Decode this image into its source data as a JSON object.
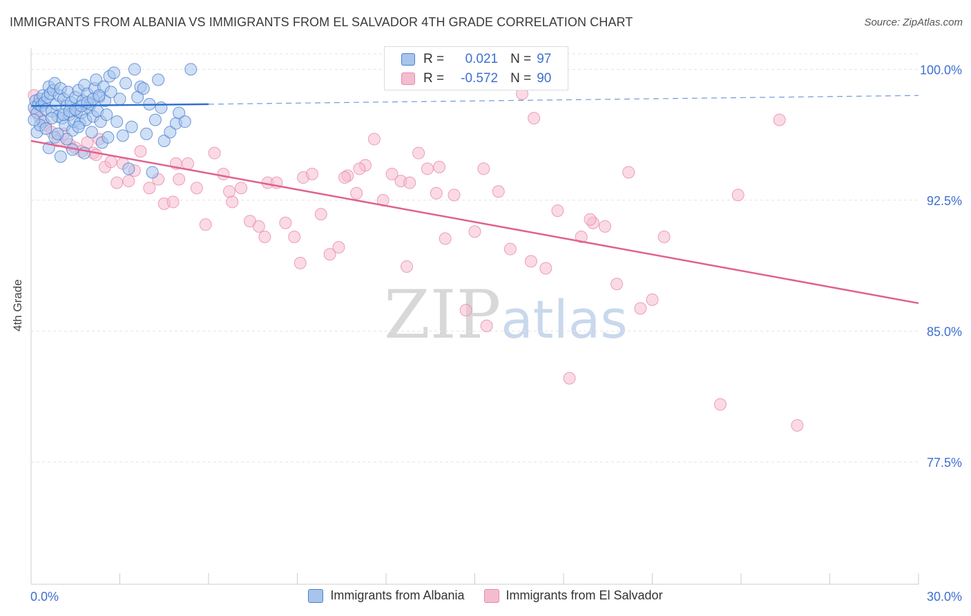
{
  "title": "IMMIGRANTS FROM ALBANIA VS IMMIGRANTS FROM EL SALVADOR 4TH GRADE CORRELATION CHART",
  "source": "Source: ZipAtlas.com",
  "watermark": {
    "zip": "ZIP",
    "atlas": "atlas"
  },
  "legend": {
    "albania": {
      "r_label": "R =",
      "r_value": "0.021",
      "n_label": "N =",
      "n_value": "97"
    },
    "elsalvador": {
      "r_label": "R =",
      "r_value": "-0.572",
      "n_label": "N =",
      "n_value": "90"
    }
  },
  "bottom_legend": {
    "albania": "Immigrants from Albania",
    "elsalvador": "Immigrants from El Salvador"
  },
  "colors": {
    "albania_fill": "#a8c4ec",
    "albania_stroke": "#4a7fd0",
    "albania_line": "#2f6fcf",
    "elsalvador_fill": "#f5bcd0",
    "elsalvador_stroke": "#e88aa8",
    "elsalvador_line": "#e0618f",
    "tick_label": "#3d6fd0",
    "grid": "#e3e3e3"
  },
  "chart_data": {
    "type": "scatter",
    "title": "IMMIGRANTS FROM ALBANIA VS IMMIGRANTS FROM EL SALVADOR 4TH GRADE CORRELATION CHART",
    "xlabel": "",
    "ylabel": "4th Grade",
    "xlim": [
      0,
      30
    ],
    "ylim": [
      70.5,
      101.2
    ],
    "x_tick_labels": [
      "0.0%",
      "30.0%"
    ],
    "y_ticks": [
      100.0,
      92.5,
      85.0,
      77.5
    ],
    "y_tick_labels": [
      "100.0%",
      "92.5%",
      "85.0%",
      "77.5%"
    ],
    "grid": true,
    "series": [
      {
        "name": "Immigrants from Albania",
        "R": 0.021,
        "N": 97,
        "trend": {
          "x": [
            0,
            6.0
          ],
          "y": [
            97.9,
            98.0
          ],
          "dash_x": [
            6.0,
            30
          ],
          "dash_y": [
            98.0,
            98.5
          ]
        },
        "points": [
          [
            0.1,
            97.8
          ],
          [
            0.15,
            98.2
          ],
          [
            0.2,
            97.5
          ],
          [
            0.25,
            98.0
          ],
          [
            0.3,
            98.3
          ],
          [
            0.35,
            97.9
          ],
          [
            0.4,
            98.5
          ],
          [
            0.45,
            98.1
          ],
          [
            0.5,
            97.7
          ],
          [
            0.55,
            98.4
          ],
          [
            0.6,
            99.0
          ],
          [
            0.65,
            98.6
          ],
          [
            0.7,
            97.6
          ],
          [
            0.75,
            98.8
          ],
          [
            0.8,
            99.2
          ],
          [
            0.85,
            98.0
          ],
          [
            0.9,
            97.3
          ],
          [
            0.95,
            98.5
          ],
          [
            1.0,
            98.9
          ],
          [
            1.05,
            97.2
          ],
          [
            1.1,
            98.3
          ],
          [
            1.15,
            96.8
          ],
          [
            1.2,
            97.9
          ],
          [
            1.25,
            98.7
          ],
          [
            1.3,
            97.4
          ],
          [
            1.35,
            98.1
          ],
          [
            1.4,
            96.5
          ],
          [
            1.45,
            97.0
          ],
          [
            1.5,
            98.4
          ],
          [
            1.55,
            97.6
          ],
          [
            1.6,
            98.8
          ],
          [
            1.65,
            96.9
          ],
          [
            1.7,
            97.5
          ],
          [
            1.75,
            98.2
          ],
          [
            1.8,
            99.1
          ],
          [
            1.85,
            97.1
          ],
          [
            1.9,
            98.6
          ],
          [
            1.95,
            97.8
          ],
          [
            2.0,
            98.0
          ],
          [
            2.05,
            96.4
          ],
          [
            2.1,
            97.3
          ],
          [
            2.15,
            98.9
          ],
          [
            2.2,
            99.4
          ],
          [
            2.25,
            97.6
          ],
          [
            2.3,
            98.4
          ],
          [
            2.35,
            97.0
          ],
          [
            2.4,
            95.8
          ],
          [
            2.45,
            99.0
          ],
          [
            2.5,
            98.2
          ],
          [
            2.55,
            97.4
          ],
          [
            2.6,
            96.1
          ],
          [
            2.65,
            99.6
          ],
          [
            2.7,
            98.7
          ],
          [
            2.8,
            99.8
          ],
          [
            2.9,
            97.0
          ],
          [
            3.0,
            98.3
          ],
          [
            3.1,
            96.2
          ],
          [
            3.2,
            99.2
          ],
          [
            3.3,
            94.3
          ],
          [
            3.4,
            96.7
          ],
          [
            3.5,
            100.0
          ],
          [
            3.6,
            98.4
          ],
          [
            3.7,
            99.0
          ],
          [
            3.8,
            98.9
          ],
          [
            3.9,
            96.3
          ],
          [
            4.0,
            98.0
          ],
          [
            4.1,
            94.1
          ],
          [
            4.2,
            97.1
          ],
          [
            4.3,
            99.4
          ],
          [
            4.4,
            97.8
          ],
          [
            4.5,
            95.9
          ],
          [
            4.7,
            96.4
          ],
          [
            4.9,
            96.9
          ],
          [
            5.0,
            97.5
          ],
          [
            5.2,
            97.0
          ],
          [
            5.4,
            100.0
          ],
          [
            0.2,
            96.4
          ],
          [
            0.4,
            97.0
          ],
          [
            0.6,
            95.5
          ],
          [
            0.8,
            96.1
          ],
          [
            1.0,
            95.0
          ],
          [
            1.2,
            96.0
          ],
          [
            1.4,
            95.4
          ],
          [
            1.6,
            96.7
          ],
          [
            1.8,
            95.2
          ],
          [
            0.3,
            96.8
          ],
          [
            0.5,
            96.6
          ],
          [
            0.7,
            97.2
          ],
          [
            0.9,
            96.3
          ],
          [
            1.1,
            97.4
          ],
          [
            1.3,
            97.6
          ],
          [
            1.5,
            97.7
          ],
          [
            1.7,
            97.9
          ],
          [
            1.9,
            98.1
          ],
          [
            2.1,
            98.3
          ],
          [
            2.3,
            98.5
          ],
          [
            0.1,
            97.1
          ]
        ]
      },
      {
        "name": "Immigrants from El Salvador",
        "R": -0.572,
        "N": 90,
        "trend": {
          "x": [
            0,
            30
          ],
          "y": [
            95.9,
            86.6
          ]
        },
        "points": [
          [
            0.1,
            98.5
          ],
          [
            0.15,
            97.6
          ],
          [
            0.3,
            97.2
          ],
          [
            0.5,
            96.8
          ],
          [
            0.7,
            96.4
          ],
          [
            0.9,
            95.9
          ],
          [
            1.1,
            96.3
          ],
          [
            1.3,
            95.7
          ],
          [
            1.5,
            95.5
          ],
          [
            1.7,
            95.3
          ],
          [
            1.9,
            95.8
          ],
          [
            2.1,
            95.2
          ],
          [
            2.3,
            96.0
          ],
          [
            2.5,
            94.4
          ],
          [
            2.7,
            94.7
          ],
          [
            2.9,
            93.5
          ],
          [
            3.1,
            94.6
          ],
          [
            3.3,
            93.6
          ],
          [
            3.5,
            94.2
          ],
          [
            3.7,
            95.3
          ],
          [
            4.0,
            93.2
          ],
          [
            4.3,
            93.7
          ],
          [
            4.5,
            92.3
          ],
          [
            4.8,
            92.4
          ],
          [
            5.0,
            93.7
          ],
          [
            5.3,
            94.6
          ],
          [
            5.6,
            93.2
          ],
          [
            5.9,
            91.1
          ],
          [
            6.2,
            95.2
          ],
          [
            6.5,
            94.0
          ],
          [
            6.8,
            92.4
          ],
          [
            7.1,
            93.2
          ],
          [
            7.4,
            91.3
          ],
          [
            7.7,
            91.0
          ],
          [
            8.0,
            93.5
          ],
          [
            8.3,
            93.5
          ],
          [
            8.6,
            91.2
          ],
          [
            8.9,
            90.4
          ],
          [
            9.2,
            93.8
          ],
          [
            9.5,
            94.0
          ],
          [
            9.8,
            91.7
          ],
          [
            10.1,
            89.4
          ],
          [
            10.4,
            89.8
          ],
          [
            10.7,
            93.9
          ],
          [
            11.0,
            92.9
          ],
          [
            11.3,
            94.5
          ],
          [
            11.6,
            96.0
          ],
          [
            11.9,
            92.5
          ],
          [
            12.2,
            94.0
          ],
          [
            12.5,
            93.6
          ],
          [
            12.8,
            93.5
          ],
          [
            13.1,
            95.2
          ],
          [
            13.4,
            94.3
          ],
          [
            13.7,
            92.9
          ],
          [
            14.0,
            90.3
          ],
          [
            14.3,
            92.8
          ],
          [
            14.7,
            86.2
          ],
          [
            15.0,
            90.7
          ],
          [
            15.4,
            85.3
          ],
          [
            15.8,
            93.0
          ],
          [
            16.2,
            89.7
          ],
          [
            16.6,
            98.6
          ],
          [
            17.0,
            97.2
          ],
          [
            17.4,
            88.6
          ],
          [
            17.8,
            91.9
          ],
          [
            18.2,
            82.3
          ],
          [
            18.6,
            90.4
          ],
          [
            19.0,
            91.2
          ],
          [
            19.4,
            91.0
          ],
          [
            19.8,
            87.7
          ],
          [
            20.2,
            94.1
          ],
          [
            20.6,
            86.3
          ],
          [
            21.0,
            86.8
          ],
          [
            21.4,
            90.4
          ],
          [
            23.3,
            80.8
          ],
          [
            23.9,
            92.8
          ],
          [
            25.3,
            97.1
          ],
          [
            25.9,
            79.6
          ],
          [
            9.1,
            88.9
          ],
          [
            11.1,
            94.3
          ],
          [
            12.7,
            88.7
          ],
          [
            4.9,
            94.6
          ],
          [
            6.7,
            93.0
          ],
          [
            7.9,
            90.4
          ],
          [
            10.6,
            93.8
          ],
          [
            13.8,
            94.4
          ],
          [
            15.3,
            94.3
          ],
          [
            16.9,
            89.0
          ],
          [
            18.9,
            91.4
          ],
          [
            2.2,
            95.1
          ]
        ]
      }
    ]
  }
}
